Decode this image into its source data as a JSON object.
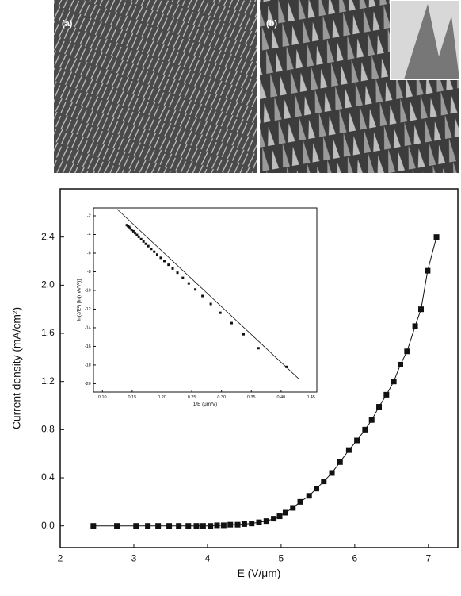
{
  "panels": [
    {
      "label": "(a)"
    },
    {
      "label": "(b)"
    }
  ],
  "chart_data": [
    {
      "type": "line",
      "xlabel": "E (V/μm)",
      "ylabel": "Current density (mA/cm²)",
      "x": [
        2.45,
        2.77,
        3.03,
        3.19,
        3.33,
        3.48,
        3.61,
        3.74,
        3.85,
        3.94,
        4.04,
        4.13,
        4.22,
        4.31,
        4.41,
        4.5,
        4.6,
        4.7,
        4.8,
        4.9,
        4.98,
        5.06,
        5.16,
        5.26,
        5.38,
        5.48,
        5.58,
        5.69,
        5.8,
        5.92,
        6.03,
        6.14,
        6.23,
        6.33,
        6.43,
        6.53,
        6.62,
        6.71,
        6.82,
        6.9,
        6.99,
        7.11
      ],
      "series": [
        {
          "color": "#111111",
          "values": [
            0,
            0,
            0,
            0,
            0,
            0,
            0,
            0,
            0,
            0,
            0,
            0.005,
            0.005,
            0.01,
            0.01,
            0.015,
            0.02,
            0.03,
            0.04,
            0.06,
            0.08,
            0.11,
            0.15,
            0.2,
            0.25,
            0.31,
            0.37,
            0.44,
            0.53,
            0.63,
            0.71,
            0.8,
            0.88,
            0.99,
            1.09,
            1.2,
            1.34,
            1.45,
            1.66,
            1.8,
            2.12,
            2.4
          ]
        }
      ],
      "xlim": [
        2,
        7.4
      ],
      "ylim": [
        -0.18,
        2.8
      ],
      "xticks": [
        2,
        3,
        4,
        5,
        6,
        7
      ],
      "yticks": [
        {
          "value": 0,
          "label": "0.0"
        },
        0.4,
        0.8,
        1.2,
        1.6,
        {
          "value": 2,
          "label": "2.0"
        },
        2.4
      ]
    },
    {
      "type": "scatter",
      "xlabel": "1/E (μm/V)",
      "ylabel": "ln(J/E²) [ln(mA/V²)]",
      "x": [
        0.141,
        0.143,
        0.145,
        0.147,
        0.149,
        0.152,
        0.155,
        0.158,
        0.161,
        0.165,
        0.169,
        0.173,
        0.177,
        0.182,
        0.187,
        0.192,
        0.198,
        0.204,
        0.211,
        0.218,
        0.226,
        0.235,
        0.245,
        0.256,
        0.268,
        0.282,
        0.298,
        0.317,
        0.337,
        0.362,
        0.409
      ],
      "series": [
        {
          "color": "#111111",
          "values": [
            -3.0,
            -3.1,
            -3.2,
            -3.35,
            -3.5,
            -3.65,
            -3.85,
            -4.05,
            -4.25,
            -4.5,
            -4.75,
            -5.0,
            -5.25,
            -5.55,
            -5.85,
            -6.15,
            -6.5,
            -6.85,
            -7.25,
            -7.65,
            -8.1,
            -8.65,
            -9.25,
            -9.9,
            -10.6,
            -11.45,
            -12.4,
            -13.5,
            -14.7,
            -16.2,
            -18.2
          ]
        }
      ],
      "fit_line": {
        "x": [
          0.125,
          0.43
        ],
        "y": [
          -1.3,
          -19.5
        ]
      },
      "xlim": [
        0.085,
        0.46
      ],
      "ylim": [
        -20.9,
        -1.15
      ],
      "xticks": [
        {
          "value": 0.1,
          "label": "0.10"
        },
        0.15,
        {
          "value": 0.2,
          "label": "0.20"
        },
        0.25,
        {
          "value": 0.3,
          "label": "0.30"
        },
        0.35,
        {
          "value": 0.4,
          "label": "0.40"
        },
        0.45
      ],
      "yticks": [
        -2,
        -4,
        -6,
        -8,
        -10,
        -12,
        -14,
        -16,
        -18,
        -20
      ]
    }
  ]
}
